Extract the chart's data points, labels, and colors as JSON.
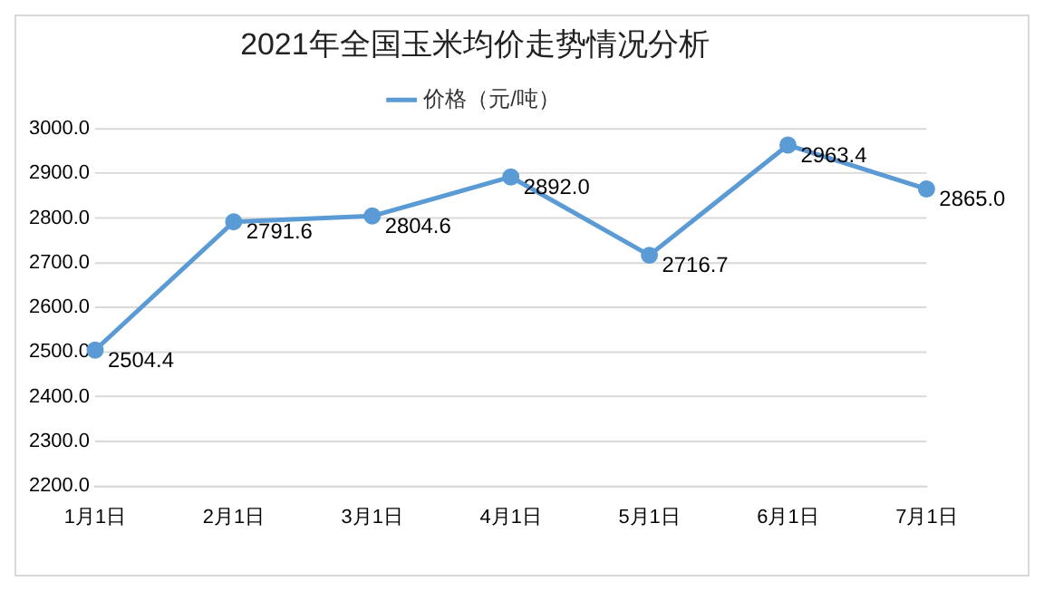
{
  "chart_data": {
    "type": "line",
    "title": "2021年全国玉米均价走势情况分析",
    "categories": [
      "1月1日",
      "2月1日",
      "3月1日",
      "4月1日",
      "5月1日",
      "6月1日",
      "7月1日"
    ],
    "series": [
      {
        "name": "价格（元/吨）",
        "color": "#5b9bd5",
        "values": [
          2504.4,
          2791.6,
          2804.6,
          2892.0,
          2716.7,
          2963.4,
          2865.0
        ],
        "value_labels": [
          "2504.4",
          "2791.6",
          "2804.6",
          "2892.0",
          "2716.7",
          "2963.4",
          "2865.0"
        ]
      }
    ],
    "ylim": [
      2200,
      3000
    ],
    "yticks": [
      {
        "value": 2200,
        "label": "2200.0"
      },
      {
        "value": 2300,
        "label": "2300.0"
      },
      {
        "value": 2400,
        "label": "2400.0"
      },
      {
        "value": 2500,
        "label": "2500.0"
      },
      {
        "value": 2600,
        "label": "2600.0"
      },
      {
        "value": 2700,
        "label": "2700.0"
      },
      {
        "value": 2800,
        "label": "2800.0"
      },
      {
        "value": 2900,
        "label": "2900.0"
      },
      {
        "value": 3000,
        "label": "3000.0"
      }
    ],
    "grid": "y",
    "legend": "top",
    "marker": "circle",
    "line_style": "solid"
  }
}
